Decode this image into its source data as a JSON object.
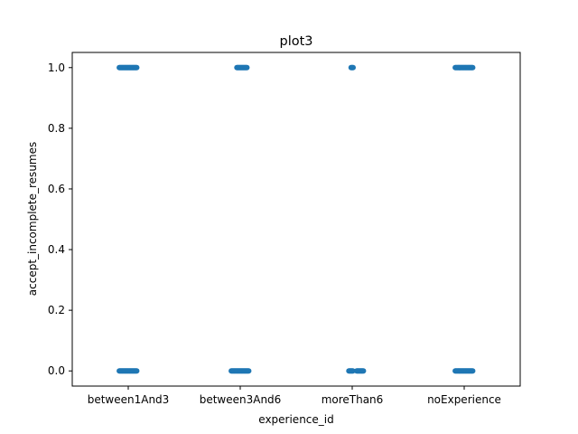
{
  "chart_data": {
    "type": "scatter",
    "title": "plot3",
    "xlabel": "experience_id",
    "ylabel": "accept_incomplete_resumes",
    "categories": [
      "between1And3",
      "between3And6",
      "moreThan6",
      "noExperience"
    ],
    "ylim": [
      -0.05,
      1.05
    ],
    "yticks": [
      0.0,
      0.2,
      0.4,
      0.6,
      0.8,
      1.0
    ],
    "ytick_labels": [
      "0.0",
      "0.2",
      "0.4",
      "0.6",
      "0.8",
      "1.0"
    ],
    "grid": false,
    "point_color": "#1f77b4",
    "series": [
      {
        "category": "between1And3",
        "y": 1.0,
        "jitter": [
          -0.08,
          0.08
        ]
      },
      {
        "category": "between1And3",
        "y": 0.0,
        "jitter": [
          -0.08,
          0.08
        ]
      },
      {
        "category": "between3And6",
        "y": 1.0,
        "jitter": [
          -0.03,
          0.06
        ]
      },
      {
        "category": "between3And6",
        "y": 0.0,
        "jitter": [
          -0.08,
          0.08
        ]
      },
      {
        "category": "moreThan6",
        "y": 1.0,
        "jitter": [
          -0.01,
          0.01
        ]
      },
      {
        "category": "moreThan6",
        "y": 0.0,
        "jitter": [
          -0.03,
          0.01
        ]
      },
      {
        "category": "moreThan6",
        "y": 0.0,
        "jitter": [
          0.04,
          0.1
        ]
      },
      {
        "category": "noExperience",
        "y": 1.0,
        "jitter": [
          -0.08,
          0.08
        ]
      },
      {
        "category": "noExperience",
        "y": 0.0,
        "jitter": [
          -0.08,
          0.08
        ]
      }
    ]
  }
}
